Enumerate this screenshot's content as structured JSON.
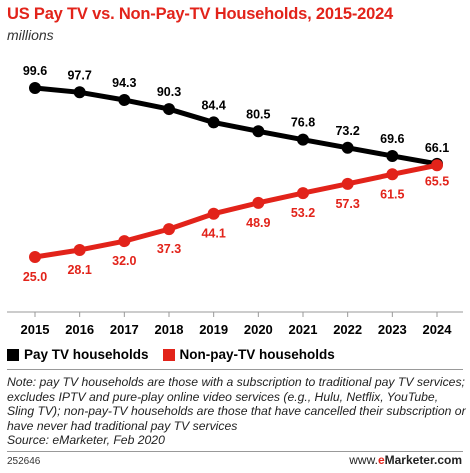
{
  "title": "US Pay TV vs. Non-Pay-TV Households, 2015-2024",
  "subtitle": "millions",
  "chart_data": {
    "type": "line",
    "title": "US Pay TV vs. Non-Pay-TV Households, 2015-2024",
    "subtitle": "millions",
    "x": [
      "2015",
      "2016",
      "2017",
      "2018",
      "2019",
      "2020",
      "2021",
      "2022",
      "2023",
      "2024"
    ],
    "series": [
      {
        "name": "Pay TV households",
        "color": "#000000",
        "values": [
          99.6,
          97.7,
          94.3,
          90.3,
          84.4,
          80.5,
          76.8,
          73.2,
          69.6,
          66.1
        ],
        "labels": [
          "99.6",
          "97.7",
          "94.3",
          "90.3",
          "84.4",
          "80.5",
          "76.8",
          "73.2",
          "69.6",
          "66.1"
        ]
      },
      {
        "name": "Non-pay-TV households",
        "color": "#e2231a",
        "values": [
          25.0,
          28.1,
          32.0,
          37.3,
          44.1,
          48.9,
          53.2,
          57.3,
          61.5,
          65.5
        ],
        "labels": [
          "25.0",
          "28.1",
          "32.0",
          "37.3",
          "44.1",
          "48.9",
          "53.2",
          "57.3",
          "61.5",
          "65.5"
        ]
      }
    ],
    "ylim": [
      20,
      105
    ],
    "grid": false,
    "legend": "bottom-left"
  },
  "note": "Note: pay TV households are those with a subscription to traditional pay TV services; excludes IPTV and pure-play online video services (e.g., Hulu, Netflix, YouTube, Sling TV); non-pay-TV households are those that have cancelled their subscription or have never had traditional pay TV services",
  "source": "Source: eMarketer, Feb 2020",
  "footer_id": "252646",
  "brand": {
    "prefix": "www.",
    "accent": "e",
    "rest": "Marketer.com"
  }
}
